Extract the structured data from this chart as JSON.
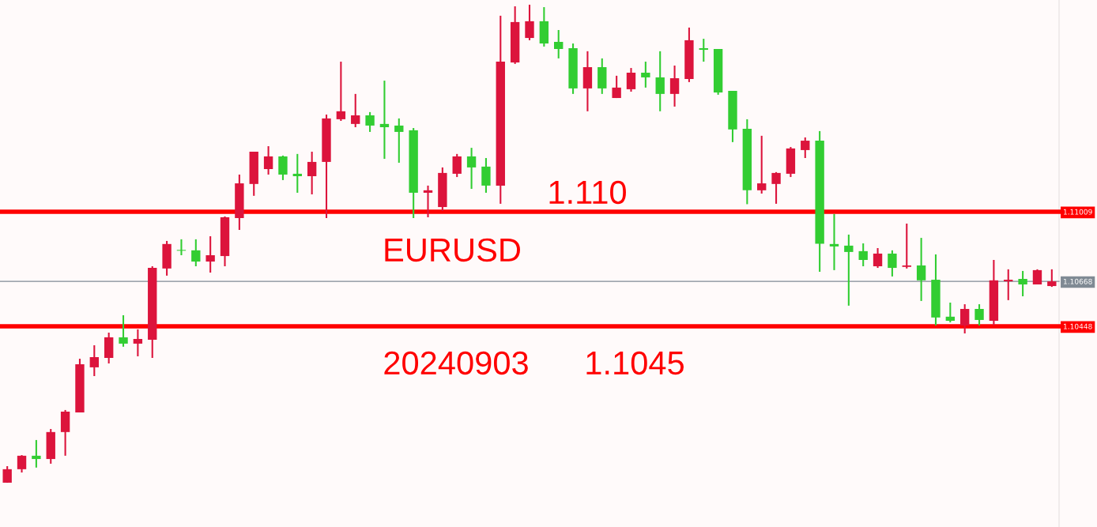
{
  "chart_data": {
    "type": "candlestick",
    "categories": [
      null,
      null,
      null,
      null,
      null,
      null,
      null,
      null,
      null,
      null,
      null,
      null,
      null,
      null,
      null,
      null,
      null,
      null,
      null,
      null,
      null,
      null,
      null,
      null,
      null,
      null,
      null,
      null,
      null,
      null,
      null,
      null,
      null,
      null,
      null,
      null,
      null,
      null,
      null,
      null,
      null,
      null,
      null,
      null,
      null,
      null,
      null,
      null,
      null,
      null,
      null,
      null,
      null,
      null,
      null,
      null,
      null,
      null,
      null,
      null,
      null,
      null,
      null,
      null,
      null,
      null,
      null,
      null,
      null,
      null,
      null,
      null,
      null
    ],
    "ohlc": [
      [
        1.09682,
        1.09763,
        1.09682,
        1.09748
      ],
      [
        1.09748,
        1.09817,
        1.09732,
        1.09814
      ],
      [
        1.09814,
        1.09891,
        1.09756,
        1.09798
      ],
      [
        1.09798,
        1.09945,
        1.09775,
        1.0993
      ],
      [
        1.0993,
        1.10038,
        1.09814,
        1.1003
      ],
      [
        1.10026,
        1.10289,
        1.10026,
        1.10262
      ],
      [
        1.10247,
        1.10355,
        1.10204,
        1.10297
      ],
      [
        1.10293,
        1.10417,
        1.10266,
        1.10394
      ],
      [
        1.10394,
        1.10502,
        1.10348,
        1.10363
      ],
      [
        1.10363,
        1.10433,
        1.10301,
        1.10386
      ],
      [
        1.10382,
        1.10742,
        1.10293,
        1.10734
      ],
      [
        1.10731,
        1.10866,
        1.10696,
        1.10851
      ],
      [
        1.10822,
        1.10874,
        1.10796,
        1.10818
      ],
      [
        1.1082,
        1.10874,
        1.10742,
        1.10765
      ],
      [
        1.10765,
        1.10889,
        1.10711,
        1.10796
      ],
      [
        1.10792,
        1.10986,
        1.10742,
        1.10982
      ],
      [
        1.10978,
        1.11191,
        1.1092,
        1.11148
      ],
      [
        1.11145,
        1.11303,
        1.11087,
        1.11303
      ],
      [
        1.11218,
        1.1133,
        1.11191,
        1.1128
      ],
      [
        1.1128,
        1.11284,
        1.11164,
        1.11191
      ],
      [
        1.11195,
        1.11292,
        1.11102,
        1.11183
      ],
      [
        1.11183,
        1.11303,
        1.11094,
        1.11253
      ],
      [
        1.11253,
        1.11485,
        1.10978,
        1.11466
      ],
      [
        1.11462,
        1.11744,
        1.11454,
        1.11501
      ],
      [
        1.11439,
        1.11586,
        1.11423,
        1.11481
      ],
      [
        1.11481,
        1.11497,
        1.114,
        1.11431
      ],
      [
        1.11439,
        1.11651,
        1.11268,
        1.11423
      ],
      [
        1.11431,
        1.11466,
        1.11249,
        1.114
      ],
      [
        1.11408,
        1.11419,
        1.10978,
        1.11102
      ],
      [
        1.11102,
        1.11137,
        1.10982,
        1.11114
      ],
      [
        1.11032,
        1.11226,
        1.11013,
        1.11199
      ],
      [
        1.11195,
        1.11292,
        1.11179,
        1.1128
      ],
      [
        1.1128,
        1.11322,
        1.11121,
        1.11226
      ],
      [
        1.1123,
        1.11272,
        1.11102,
        1.11137
      ],
      [
        1.11137,
        1.11969,
        1.11048,
        1.11744
      ],
      [
        1.1174,
        1.12015,
        1.11733,
        1.11938
      ],
      [
        1.1186,
        1.12023,
        1.11849,
        1.11942
      ],
      [
        1.11942,
        1.12011,
        1.11818,
        1.11833
      ],
      [
        1.11841,
        1.11899,
        1.1176,
        1.11806
      ],
      [
        1.1181,
        1.11833,
        1.11586,
        1.11613
      ],
      [
        1.11613,
        1.11795,
        1.11501,
        1.11717
      ],
      [
        1.11717,
        1.1176,
        1.11586,
        1.11613
      ],
      [
        1.11566,
        1.11675,
        1.11566,
        1.11617
      ],
      [
        1.11609,
        1.11713,
        1.11597,
        1.1169
      ],
      [
        1.1169,
        1.11744,
        1.11617,
        1.11667
      ],
      [
        1.11667,
        1.11795,
        1.11501,
        1.11586
      ],
      [
        1.11586,
        1.11725,
        1.11524,
        1.11663
      ],
      [
        1.11659,
        1.11911,
        1.11644,
        1.11849
      ],
      [
        1.1181,
        1.11856,
        1.11744,
        1.11802
      ],
      [
        1.11806,
        1.11806,
        1.11582,
        1.11593
      ],
      [
        1.11601,
        1.11601,
        1.1135,
        1.11412
      ],
      [
        1.11415,
        1.11462,
        1.11046,
        1.11114
      ],
      [
        1.11114,
        1.11381,
        1.11098,
        1.11148
      ],
      [
        1.11145,
        1.11203,
        1.11048,
        1.11199
      ],
      [
        1.11195,
        1.11326,
        1.11179,
        1.11319
      ],
      [
        1.11311,
        1.11373,
        1.11272,
        1.11357
      ],
      [
        1.11357,
        1.11404,
        1.10715,
        1.10852
      ],
      [
        1.10851,
        1.10998,
        1.10723,
        1.10839
      ],
      [
        1.10843,
        1.10897,
        1.10549,
        1.10812
      ],
      [
        1.10816,
        1.10854,
        1.10742,
        1.10773
      ],
      [
        1.10742,
        1.10831,
        1.10734,
        1.10804
      ],
      [
        1.10804,
        1.1082,
        1.10692,
        1.10734
      ],
      [
        1.10739,
        1.10951,
        1.10731,
        1.10746
      ],
      [
        1.10746,
        1.10881,
        1.10572,
        1.10673
      ],
      [
        1.10676,
        1.108,
        1.10452,
        1.10491
      ],
      [
        1.10495,
        1.10564,
        1.10467,
        1.10475
      ],
      [
        1.10452,
        1.10556,
        1.10413,
        1.10533
      ],
      [
        1.10533,
        1.10556,
        1.10452,
        1.10479
      ],
      [
        1.10475,
        1.10773,
        1.10452,
        1.10673
      ],
      [
        1.10668,
        1.10727,
        1.10576,
        1.10676
      ],
      [
        1.1068,
        1.10719,
        1.10595,
        1.10653
      ],
      [
        1.10653,
        1.10727,
        1.10653,
        1.10723
      ],
      [
        1.10645,
        1.10727,
        1.10641,
        1.10668
      ]
    ],
    "colors": [
      "#dc143c",
      "#dc143c",
      "#32cd32",
      "#dc143c",
      "#dc143c",
      "#dc143c",
      "#dc143c",
      "#dc143c",
      "#32cd32",
      "#dc143c",
      "#dc143c",
      "#dc143c",
      "#32cd32",
      "#32cd32",
      "#dc143c",
      "#dc143c",
      "#dc143c",
      "#dc143c",
      "#dc143c",
      "#32cd32",
      "#32cd32",
      "#dc143c",
      "#dc143c",
      "#dc143c",
      "#dc143c",
      "#32cd32",
      "#32cd32",
      "#32cd32",
      "#32cd32",
      "#dc143c",
      "#dc143c",
      "#dc143c",
      "#32cd32",
      "#32cd32",
      "#dc143c",
      "#dc143c",
      "#dc143c",
      "#32cd32",
      "#32cd32",
      "#32cd32",
      "#dc143c",
      "#32cd32",
      "#dc143c",
      "#dc143c",
      "#32cd32",
      "#32cd32",
      "#dc143c",
      "#dc143c",
      "#32cd32",
      "#32cd32",
      "#32cd32",
      "#32cd32",
      "#dc143c",
      "#dc143c",
      "#dc143c",
      "#dc143c",
      "#32cd32",
      "#32cd32",
      "#32cd32",
      "#32cd32",
      "#dc143c",
      "#32cd32",
      "#dc143c",
      "#32cd32",
      "#32cd32",
      "#32cd32",
      "#dc143c",
      "#32cd32",
      "#dc143c",
      "#dc143c",
      "#32cd32",
      "#dc143c",
      "#dc143c"
    ],
    "ylim": [
      1.09465,
      1.12046
    ],
    "yticks": [
      1.10448,
      1.10668,
      1.11009
    ],
    "ref_lines": [
      {
        "axis": "y",
        "value": 1.11009,
        "color": "#ff0000"
      },
      {
        "axis": "y",
        "value": 1.10668,
        "color": "#808a94"
      },
      {
        "axis": "y",
        "value": 1.10448,
        "color": "#ff0000"
      }
    ],
    "tick_labels": "y",
    "grid": false,
    "annotations": [
      "1.110",
      "EURUSD",
      "20240903",
      "1.1045"
    ],
    "legend": false
  }
}
